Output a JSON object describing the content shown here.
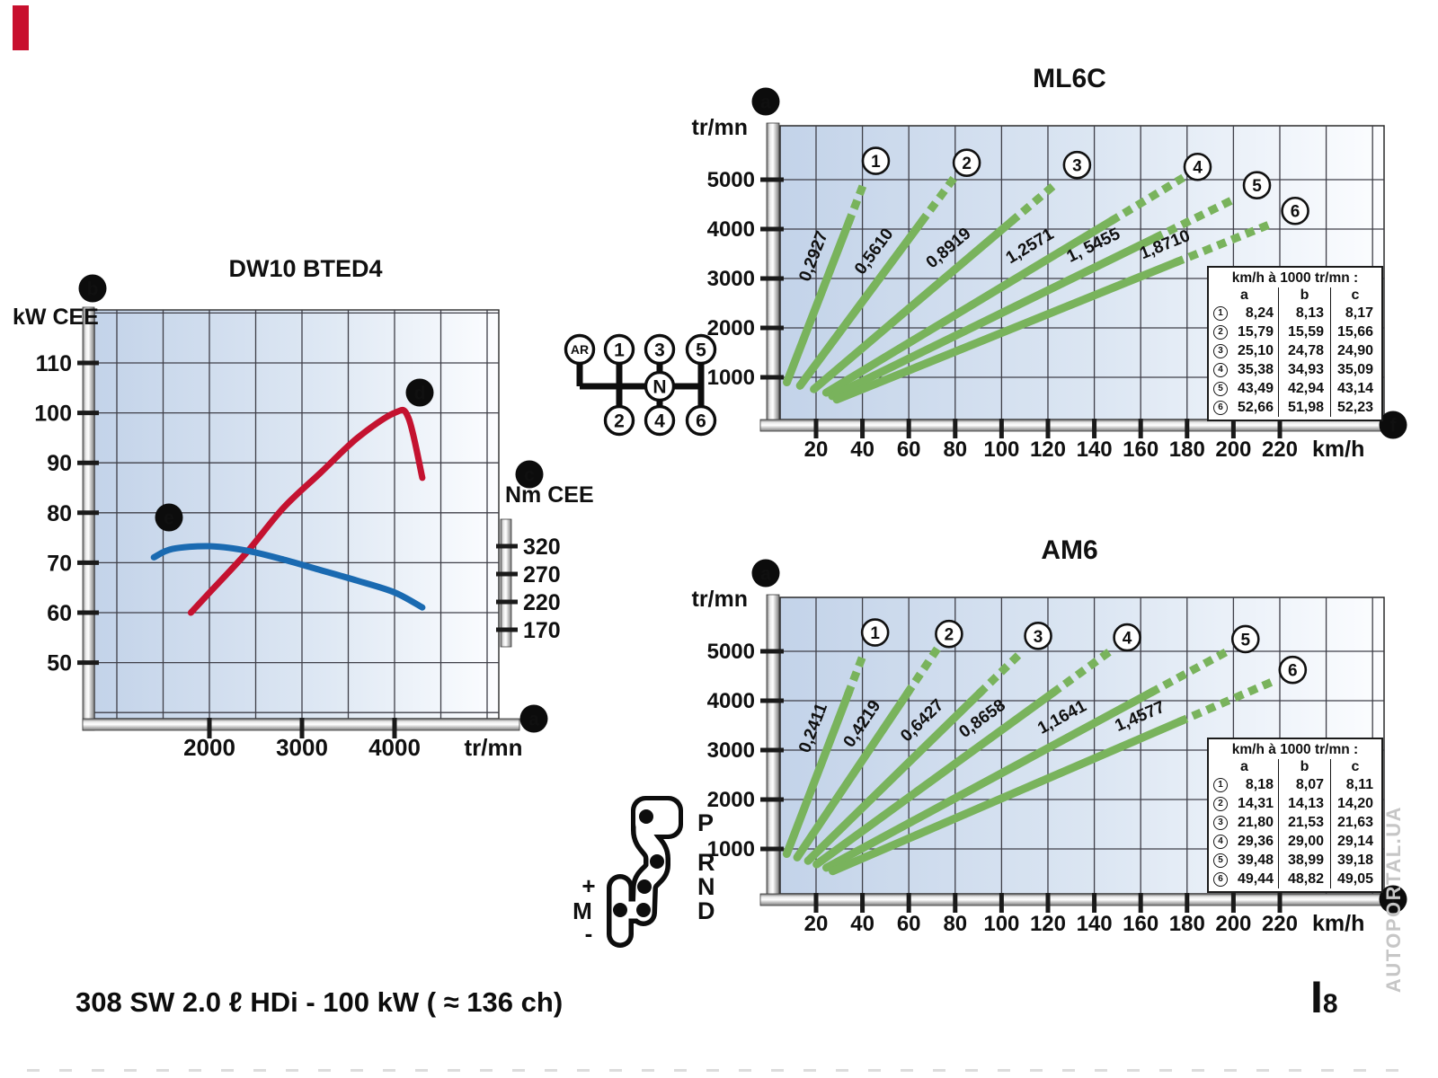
{
  "page": {
    "caption": "308 SW 2.0 ℓ HDi - 100 kW ( ≈ 136 ch)",
    "watermark": "AUTOPORTAL.UA",
    "page_marker": "I",
    "page_number": "8"
  },
  "gearshift_manual": {
    "top_row": [
      "AR",
      "1",
      "3",
      "5"
    ],
    "center": "N",
    "bottom_row": [
      "2",
      "4",
      "6"
    ]
  },
  "gearshift_auto": {
    "gate_labels": [
      "P",
      "R",
      "N",
      "D"
    ],
    "manual_mode": {
      "plus": "+",
      "label": "M",
      "minus": "-"
    }
  },
  "chart_data": [
    {
      "id": "engine",
      "type": "line",
      "title": "DW10 BTED4",
      "xlabel": "tr/mn",
      "ylabel_left": "kW CEE",
      "ylabel_right": "Nm CEE",
      "x_ticks": [
        2000,
        3000,
        4000
      ],
      "y_left_ticks": [
        110,
        100,
        90,
        80,
        70,
        60,
        50
      ],
      "y_right_ticks": [
        320,
        270,
        220,
        170
      ],
      "badges": {
        "x_axis": "a",
        "y_left": "b",
        "y_right": "c",
        "power": "d",
        "torque": "e"
      },
      "series": [
        {
          "name": "power",
          "unit": "kW",
          "color": "#c41230",
          "badge": "d",
          "x": [
            1800,
            2000,
            2400,
            2800,
            3200,
            3600,
            4000,
            4150,
            4300
          ],
          "y": [
            60,
            64,
            72,
            81,
            88,
            95,
            100,
            99,
            87
          ]
        },
        {
          "name": "torque",
          "unit": "Nm",
          "color": "#1a6ab1",
          "badge": "e",
          "x": [
            1400,
            1600,
            2000,
            2400,
            2800,
            3200,
            3600,
            4000,
            4300
          ],
          "y": [
            300,
            315,
            320,
            312,
            296,
            277,
            258,
            237,
            210
          ]
        }
      ]
    },
    {
      "id": "ml6c",
      "type": "line",
      "title": "ML6C",
      "ylabel": "tr/mn",
      "xlabel": "km/h",
      "line_color": "#79b35c",
      "x_ticks": [
        20,
        40,
        60,
        80,
        100,
        120,
        140,
        160,
        180,
        200,
        220
      ],
      "y_ticks": [
        5000,
        4000,
        3000,
        2000,
        1000
      ],
      "badges": {
        "y_axis": "a",
        "x_axis_end": "f"
      },
      "gears": [
        {
          "num": "1",
          "ratio": "0,2927",
          "kmh_at_1000rpm": 8.24,
          "end_rpm": 5000
        },
        {
          "num": "2",
          "ratio": "0,5610",
          "kmh_at_1000rpm": 15.79,
          "end_rpm": 5000
        },
        {
          "num": "3",
          "ratio": "0,8919",
          "kmh_at_1000rpm": 25.1,
          "end_rpm": 5000
        },
        {
          "num": "4",
          "ratio": "1,2571",
          "kmh_at_1000rpm": 35.38,
          "end_rpm": 5000
        },
        {
          "num": "5",
          "ratio": "1, 5455",
          "kmh_at_1000rpm": 43.49,
          "end_rpm": 4650
        },
        {
          "num": "6",
          "ratio": "1,8710",
          "kmh_at_1000rpm": 52.66,
          "end_rpm": 4150
        }
      ],
      "table": {
        "title": "km/h à 1000 tr/mn :",
        "columns": [
          "a",
          "b",
          "c"
        ],
        "rows": [
          [
            "8,24",
            "8,13",
            "8,17"
          ],
          [
            "15,79",
            "15,59",
            "15,66"
          ],
          [
            "25,10",
            "24,78",
            "24,90"
          ],
          [
            "35,38",
            "34,93",
            "35,09"
          ],
          [
            "43,49",
            "42,94",
            "43,14"
          ],
          [
            "52,66",
            "51,98",
            "52,23"
          ]
        ]
      }
    },
    {
      "id": "am6",
      "type": "line",
      "title": "AM6",
      "ylabel": "tr/mn",
      "xlabel": "km/h",
      "line_color": "#79b35c",
      "x_ticks": [
        20,
        40,
        60,
        80,
        100,
        120,
        140,
        160,
        180,
        200,
        220
      ],
      "y_ticks": [
        5000,
        4000,
        3000,
        2000,
        1000
      ],
      "badges": {
        "y_axis": "a",
        "x_axis_end": "f"
      },
      "gears": [
        {
          "num": "1",
          "ratio": "0,2411",
          "kmh_at_1000rpm": 8.18,
          "end_rpm": 5000
        },
        {
          "num": "2",
          "ratio": "0,4219",
          "kmh_at_1000rpm": 14.31,
          "end_rpm": 5000
        },
        {
          "num": "3",
          "ratio": "0,6427",
          "kmh_at_1000rpm": 21.8,
          "end_rpm": 5000
        },
        {
          "num": "4",
          "ratio": "0,8658",
          "kmh_at_1000rpm": 29.36,
          "end_rpm": 5000
        },
        {
          "num": "5",
          "ratio": "1,1641",
          "kmh_at_1000rpm": 39.48,
          "end_rpm": 5000
        },
        {
          "num": "6",
          "ratio": "1,4577",
          "kmh_at_1000rpm": 49.44,
          "end_rpm": 4400
        }
      ],
      "table": {
        "title": "km/h à 1000 tr/mn :",
        "columns": [
          "a",
          "b",
          "c"
        ],
        "rows": [
          [
            "8,18",
            "8,07",
            "8,11"
          ],
          [
            "14,31",
            "14,13",
            "14,20"
          ],
          [
            "21,80",
            "21,53",
            "21,63"
          ],
          [
            "29,36",
            "29,00",
            "29,14"
          ],
          [
            "39,48",
            "38,99",
            "39,18"
          ],
          [
            "49,44",
            "48,82",
            "49,05"
          ]
        ]
      }
    }
  ]
}
